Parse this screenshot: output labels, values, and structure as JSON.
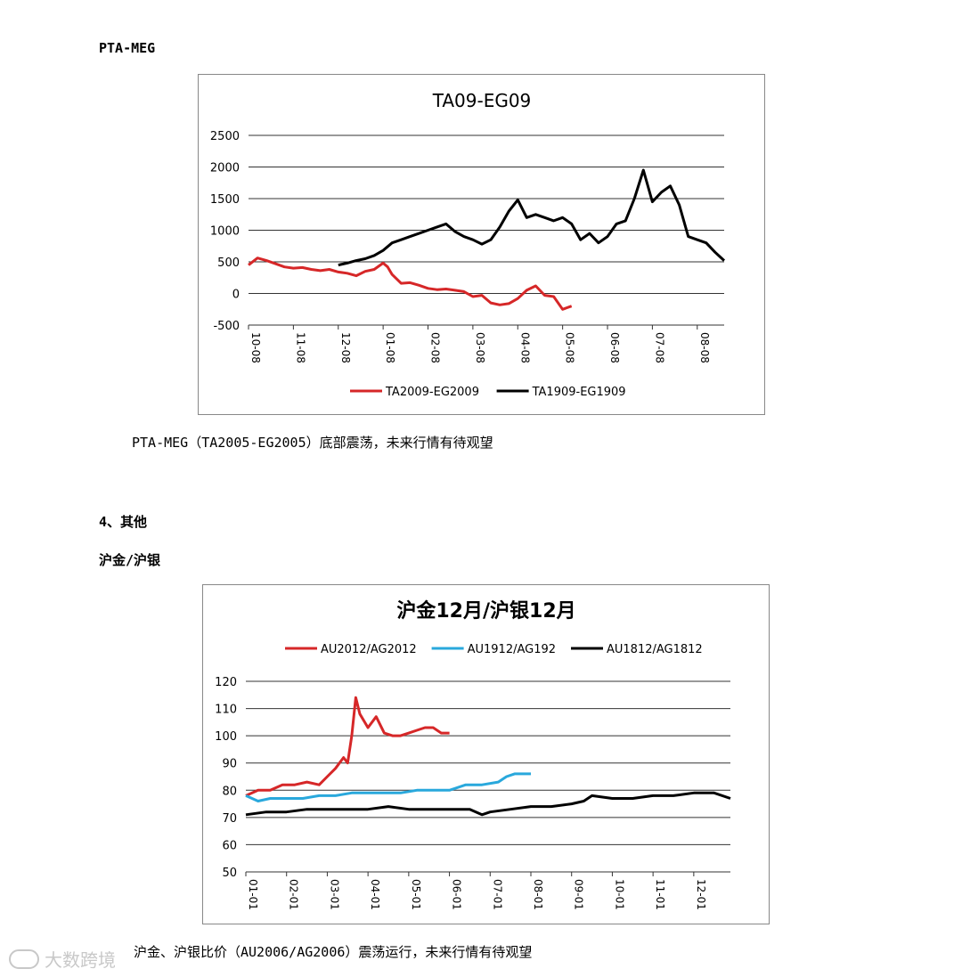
{
  "section1": {
    "heading": "PTA-MEG",
    "caption": "PTA-MEG（TA2005-EG2005）底部震荡，未来行情有待观望"
  },
  "section2": {
    "heading": "4、其他",
    "subheading": "沪金/沪银",
    "caption": "沪金、沪银比价（AU2006/AG2006）震荡运行，未来行情有待观望"
  },
  "watermark": {
    "text": "大数跨境",
    "icon": "logo-icon"
  },
  "chart_data": [
    {
      "type": "line",
      "title": "TA09-EG09",
      "ylim": [
        -500,
        2500
      ],
      "yticks": [
        2500,
        2000,
        1500,
        1000,
        500,
        0,
        -500
      ],
      "xticks": [
        "10-08",
        "11-08",
        "12-08",
        "01-08",
        "02-08",
        "03-08",
        "04-08",
        "05-08",
        "06-08",
        "07-08",
        "08-08"
      ],
      "xlim": [
        0,
        10.6
      ],
      "grid": true,
      "legend": "bottom",
      "series": [
        {
          "name": "TA2009-EG2009",
          "color": "#d62728",
          "x": [
            0,
            0.2,
            0.4,
            0.6,
            0.8,
            1.0,
            1.2,
            1.4,
            1.6,
            1.8,
            2.0,
            2.2,
            2.4,
            2.6,
            2.8,
            3.0,
            3.1,
            3.2,
            3.4,
            3.6,
            3.8,
            4.0,
            4.2,
            4.4,
            4.6,
            4.8,
            5.0,
            5.2,
            5.4,
            5.6,
            5.8,
            6.0,
            6.2,
            6.4,
            6.6,
            6.8,
            7.0,
            7.2
          ],
          "values": [
            450,
            560,
            520,
            470,
            420,
            400,
            410,
            380,
            360,
            380,
            340,
            320,
            280,
            350,
            380,
            480,
            420,
            300,
            160,
            170,
            130,
            80,
            60,
            70,
            50,
            30,
            -50,
            -30,
            -150,
            -180,
            -160,
            -80,
            50,
            120,
            -30,
            -50,
            -250,
            -200
          ]
        },
        {
          "name": "TA1909-EG1909",
          "color": "#000000",
          "x": [
            2.0,
            2.2,
            2.4,
            2.6,
            2.8,
            3.0,
            3.2,
            3.4,
            3.6,
            3.8,
            4.0,
            4.2,
            4.4,
            4.6,
            4.8,
            5.0,
            5.2,
            5.4,
            5.6,
            5.8,
            6.0,
            6.2,
            6.4,
            6.6,
            6.8,
            7.0,
            7.2,
            7.4,
            7.6,
            7.8,
            8.0,
            8.2,
            8.4,
            8.6,
            8.8,
            9.0,
            9.2,
            9.4,
            9.6,
            9.8,
            10.0,
            10.2,
            10.4,
            10.6
          ],
          "values": [
            450,
            480,
            520,
            550,
            600,
            680,
            800,
            850,
            900,
            950,
            1000,
            1050,
            1100,
            980,
            900,
            850,
            780,
            850,
            1050,
            1300,
            1480,
            1200,
            1250,
            1200,
            1150,
            1200,
            1100,
            850,
            950,
            800,
            900,
            1100,
            1150,
            1500,
            1950,
            1450,
            1600,
            1700,
            1400,
            900,
            850,
            800,
            650,
            520
          ]
        }
      ]
    },
    {
      "type": "line",
      "title": "沪金12月/沪银12月",
      "ylim": [
        50,
        120
      ],
      "yticks": [
        120,
        110,
        100,
        90,
        80,
        70,
        60,
        50
      ],
      "xticks": [
        "01-01",
        "02-01",
        "03-01",
        "04-01",
        "05-01",
        "06-01",
        "07-01",
        "08-01",
        "09-01",
        "10-01",
        "11-01",
        "12-01"
      ],
      "xlim": [
        0,
        11.9
      ],
      "grid": true,
      "legend": "top",
      "series": [
        {
          "name": "AU2012/AG2012",
          "color": "#d62728",
          "x": [
            0,
            0.3,
            0.6,
            0.9,
            1.2,
            1.5,
            1.8,
            2.0,
            2.2,
            2.4,
            2.5,
            2.6,
            2.7,
            2.8,
            3.0,
            3.2,
            3.4,
            3.6,
            3.8,
            4.0,
            4.2,
            4.4,
            4.6,
            4.8,
            5.0
          ],
          "values": [
            78,
            80,
            80,
            82,
            82,
            83,
            82,
            85,
            88,
            92,
            90,
            100,
            114,
            108,
            103,
            107,
            101,
            100,
            100,
            101,
            102,
            103,
            103,
            101,
            101
          ]
        },
        {
          "name": "AU1912/AG192",
          "color": "#29a8dc",
          "x": [
            0,
            0.3,
            0.6,
            1.0,
            1.4,
            1.8,
            2.2,
            2.6,
            3.0,
            3.4,
            3.8,
            4.2,
            4.6,
            5.0,
            5.4,
            5.8,
            6.2,
            6.4,
            6.6,
            6.8,
            7.0
          ],
          "values": [
            78,
            76,
            77,
            77,
            77,
            78,
            78,
            79,
            79,
            79,
            79,
            80,
            80,
            80,
            82,
            82,
            83,
            85,
            86,
            86,
            86
          ]
        },
        {
          "name": "AU1812/AG1812",
          "color": "#000000",
          "x": [
            0,
            0.5,
            1.0,
            1.5,
            2.0,
            2.5,
            3.0,
            3.5,
            4.0,
            4.5,
            5.0,
            5.5,
            5.8,
            6.0,
            6.5,
            7.0,
            7.5,
            8.0,
            8.3,
            8.5,
            9.0,
            9.5,
            10.0,
            10.5,
            11.0,
            11.5,
            11.9
          ],
          "values": [
            71,
            72,
            72,
            73,
            73,
            73,
            73,
            74,
            73,
            73,
            73,
            73,
            71,
            72,
            73,
            74,
            74,
            75,
            76,
            78,
            77,
            77,
            78,
            78,
            79,
            79,
            77
          ]
        }
      ]
    }
  ]
}
